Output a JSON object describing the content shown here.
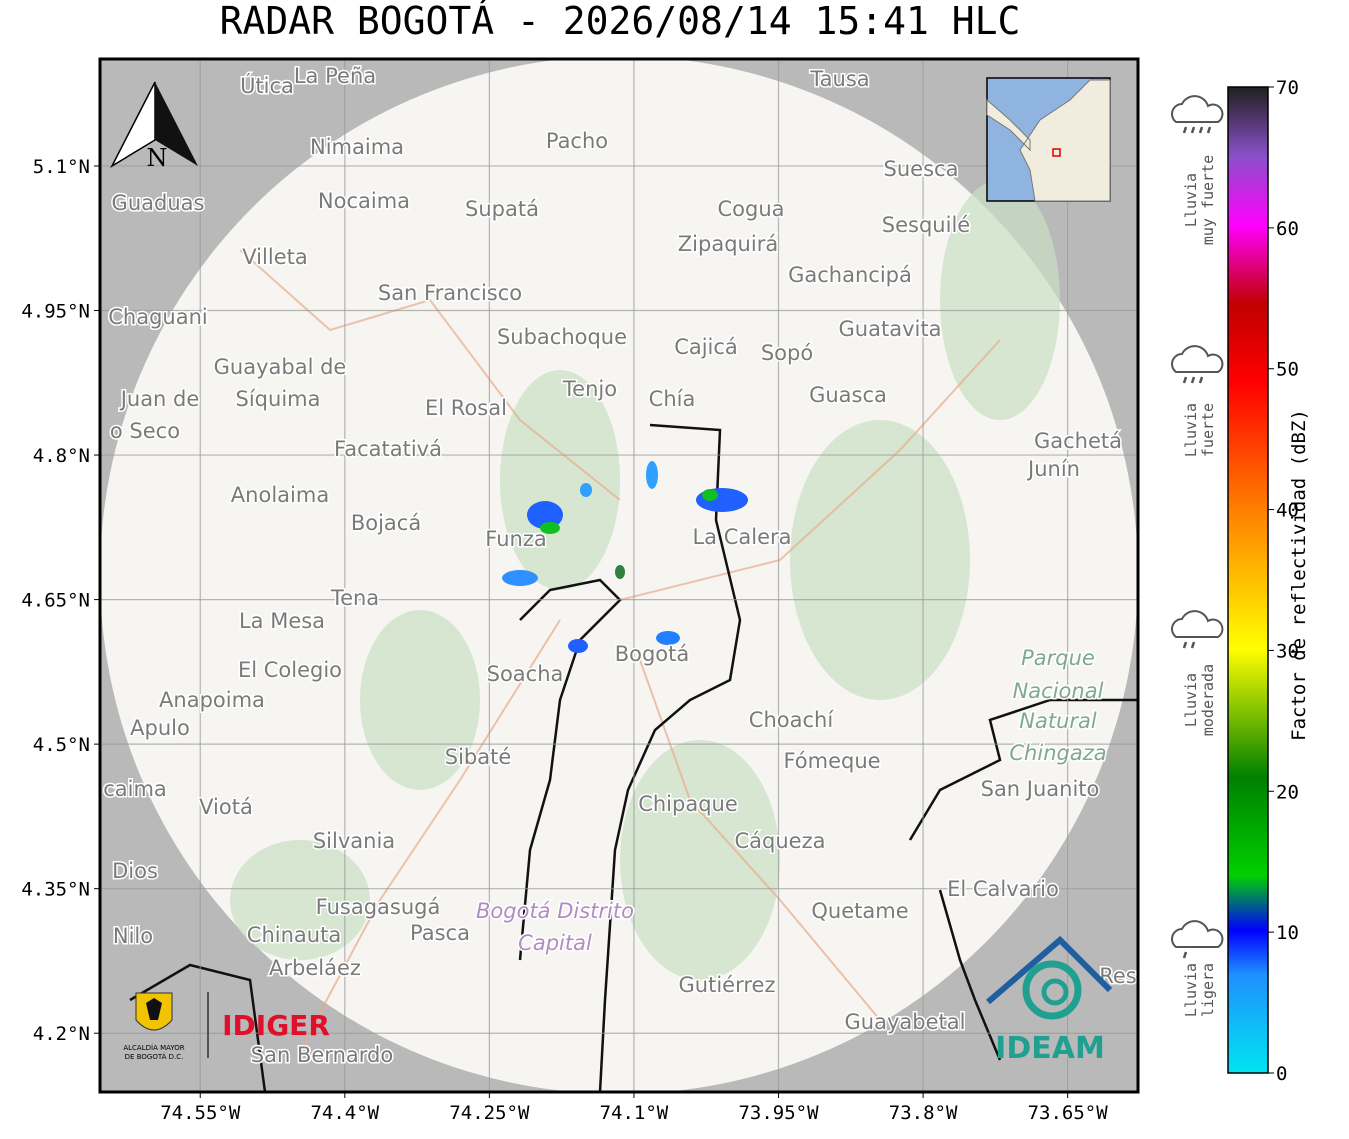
{
  "chart_data": {
    "type": "map",
    "title": "RADAR BOGOTÁ - 2026/08/14 15:41 HLC",
    "xlim": [
      -74.654,
      -73.577
    ],
    "ylim": [
      4.139,
      5.211
    ],
    "xticks": [
      {
        "value": -74.55,
        "label": "74.55°W"
      },
      {
        "value": -74.4,
        "label": "74.4°W"
      },
      {
        "value": -74.25,
        "label": "74.25°W"
      },
      {
        "value": -74.1,
        "label": "74.1°W"
      },
      {
        "value": -73.95,
        "label": "73.95°W"
      },
      {
        "value": -73.8,
        "label": "73.8°W"
      },
      {
        "value": -73.65,
        "label": "73.65°W"
      }
    ],
    "yticks": [
      {
        "value": 5.1,
        "label": "5.1°N"
      },
      {
        "value": 4.95,
        "label": "4.95°N"
      },
      {
        "value": 4.8,
        "label": "4.8°N"
      },
      {
        "value": 4.65,
        "label": "4.65°N"
      },
      {
        "value": 4.5,
        "label": "4.5°N"
      },
      {
        "value": 4.35,
        "label": "4.35°N"
      },
      {
        "value": 4.2,
        "label": "4.2°N"
      }
    ],
    "grid": true,
    "north": "N",
    "places": [
      "Útica",
      "La Peña",
      "Tausa",
      "Pacho",
      "Nimaima",
      "Guaduas",
      "Nocaima",
      "Supatá",
      "Cogua",
      "Zipaquirá",
      "Suesca",
      "Sesquilé",
      "Villeta",
      "Gachancipá",
      "San Francisco",
      "Chaguani",
      "Guatavita",
      "Subachoque",
      "Cajicá",
      "Sopó",
      "Guayabal de",
      "Síquima",
      "Juan de",
      "o Seco",
      "Tenjo",
      "Chía",
      "Guasca",
      "El Rosal",
      "Facatativá",
      "Gachetá",
      "Junín",
      "Anolaima",
      "Bojacá",
      "Funza",
      "La Calera",
      "Tena",
      "La Mesa",
      "Soacha",
      "Bogotá",
      "El Colegio",
      "Anapoima",
      "Apulo",
      "Parque",
      "Nacional",
      "Natural",
      "Chingaza",
      "Choachí",
      "Sibaté",
      "Fómeque",
      "San Juanito",
      "caima",
      "Viotá",
      "Chipaque",
      "Silvania",
      "Cáqueza",
      "Dios",
      "El Calvario",
      "Fusagasugá",
      "Bogotá Distrito",
      "Capital",
      "Quetame",
      "Nilo",
      "Chinauta",
      "Pasca",
      "Arbeláez",
      "Gutiérrez",
      "Guayabetal",
      "San Bernardo",
      "Res"
    ],
    "colorbar": {
      "label": "Factor de reflectividad (dBZ)",
      "vlim": [
        0,
        70
      ],
      "ticks": [
        0,
        10,
        20,
        30,
        40,
        50,
        60,
        70
      ]
    },
    "rain_levels": [
      [
        "Lluvia",
        "muy fuerte"
      ],
      [
        "Lluvia",
        "fuerte"
      ],
      [
        "Lluvia",
        "moderada"
      ],
      [
        "Lluvia",
        "ligera"
      ]
    ],
    "logos": {
      "alcaldia": [
        "ALCALDÍA MAYOR",
        "DE BOGOTÁ D.C."
      ],
      "idiger": "IDIGER",
      "ideam": "IDEAM"
    }
  }
}
